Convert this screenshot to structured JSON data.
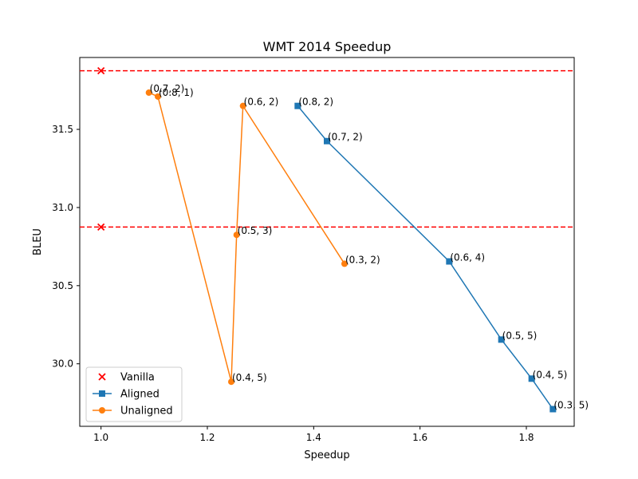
{
  "chart_data": {
    "type": "line",
    "title": "WMT 2014 Speedup",
    "xlabel": "Speedup",
    "ylabel": "BLEU",
    "xlim": [
      0.96,
      1.89
    ],
    "ylim": [
      29.6,
      31.96
    ],
    "xticks": [
      "1.0",
      "1.2",
      "1.4",
      "1.6",
      "1.8"
    ],
    "yticks": [
      "30.0",
      "30.5",
      "31.0",
      "31.5"
    ],
    "hlines": [
      31.875,
      30.875
    ],
    "legend_position": "lower-left",
    "series": [
      {
        "name": "Vanilla",
        "kind": "scatter",
        "marker": "x",
        "color": "#ff0000",
        "points": [
          {
            "x": 1.0,
            "y": 31.875,
            "label": ""
          },
          {
            "x": 1.0,
            "y": 30.875,
            "label": ""
          }
        ]
      },
      {
        "name": "Aligned",
        "kind": "line",
        "marker": "square",
        "color": "#1f77b4",
        "points": [
          {
            "x": 1.37,
            "y": 31.65,
            "label": "(0.8, 2)"
          },
          {
            "x": 1.425,
            "y": 31.425,
            "label": "(0.7, 2)"
          },
          {
            "x": 1.655,
            "y": 30.655,
            "label": "(0.6, 4)"
          },
          {
            "x": 1.753,
            "y": 30.155,
            "label": "(0.5, 5)"
          },
          {
            "x": 1.81,
            "y": 29.905,
            "label": "(0.4, 5)"
          },
          {
            "x": 1.85,
            "y": 29.71,
            "label": "(0.3, 5)"
          }
        ]
      },
      {
        "name": "Unaligned",
        "kind": "line",
        "marker": "circle",
        "color": "#ff7f0e",
        "points": [
          {
            "x": 1.09,
            "y": 31.735,
            "label": "(0.7, 2)"
          },
          {
            "x": 1.107,
            "y": 31.71,
            "label": "(0.8, 1)"
          },
          {
            "x": 1.245,
            "y": 29.885,
            "label": "(0.4, 5)"
          },
          {
            "x": 1.255,
            "y": 30.825,
            "label": "(0.5, 3)"
          },
          {
            "x": 1.267,
            "y": 31.65,
            "label": "(0.6, 2)"
          },
          {
            "x": 1.458,
            "y": 30.64,
            "label": "(0.3, 2)"
          }
        ]
      }
    ]
  }
}
